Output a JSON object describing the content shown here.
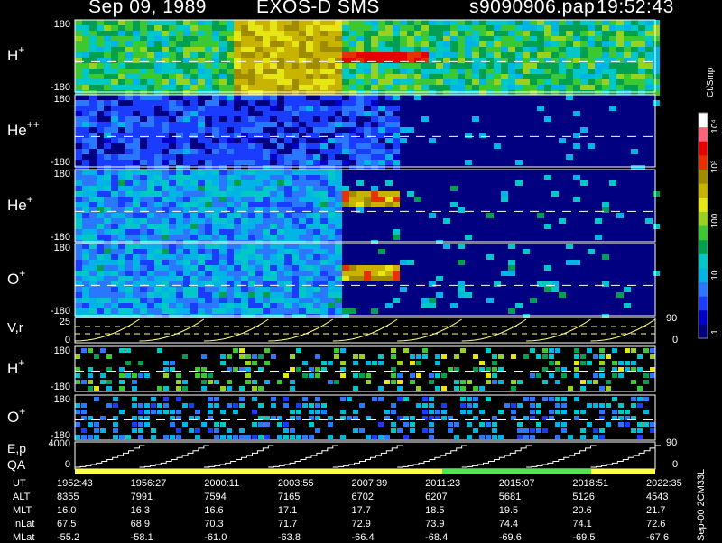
{
  "header": {
    "date": "Sep 09, 1989",
    "instrument": "EXOS-D SMS",
    "file": "s9090906.pap",
    "time": "19:52:43"
  },
  "panels": [
    {
      "id": "hplus",
      "label": "H",
      "sup": "+",
      "top": "180",
      "bottom": "-180",
      "hue": "hot"
    },
    {
      "id": "heplusplus",
      "label": "He",
      "sup": "++",
      "top": "180",
      "bottom": "-180",
      "hue": "cold"
    },
    {
      "id": "heplus",
      "label": "He",
      "sup": "+",
      "top": "180",
      "bottom": "-180",
      "hue": "mid"
    },
    {
      "id": "oplus",
      "label": "O",
      "sup": "+",
      "top": "180",
      "bottom": "-180",
      "hue": "mid"
    }
  ],
  "vr_panel": {
    "label": "V,r",
    "left_top": "25",
    "left_bottom": "0",
    "right_top": "90",
    "right_bottom": "0"
  },
  "small_panels": [
    {
      "id": "hplus2",
      "label": "H",
      "sup": "+",
      "top": "180",
      "bottom": "-180"
    },
    {
      "id": "oplus2",
      "label": "O",
      "sup": "+",
      "top": "180",
      "bottom": "-180"
    }
  ],
  "ep_panel": {
    "label1": "E,p",
    "label2": "QA",
    "left_top": "4000",
    "left_bottom": "0",
    "right_top": "90",
    "right_bottom": "0"
  },
  "colorbar": {
    "unit": "Ct/Smp",
    "ticks": [
      "1",
      "10",
      "100",
      "10³",
      "10⁴"
    ],
    "colors": [
      "#000080",
      "#0000c8",
      "#1a3cff",
      "#2a78ff",
      "#00b4e6",
      "#00c8c8",
      "#00a050",
      "#3cc832",
      "#96d21e",
      "#e6e614",
      "#c8b400",
      "#a08c00",
      "#e63200",
      "#e60000",
      "#ff6478",
      "#ffffff"
    ]
  },
  "time_table": {
    "row_labels": [
      "UT",
      "ALT",
      "MLT",
      "InLat",
      "MLat"
    ],
    "columns": [
      {
        "UT": "1952:43",
        "ALT": "8355",
        "MLT": "16.0",
        "InLat": "67.5",
        "MLat": "-55.2"
      },
      {
        "UT": "1956:27",
        "ALT": "7991",
        "MLT": "16.3",
        "InLat": "68.9",
        "MLat": "-58.1"
      },
      {
        "UT": "2000:11",
        "ALT": "7594",
        "MLT": "16.6",
        "InLat": "70.3",
        "MLat": "-61.0"
      },
      {
        "UT": "2003:55",
        "ALT": "7165",
        "MLT": "17.1",
        "InLat": "71.7",
        "MLat": "-63.8"
      },
      {
        "UT": "2007:39",
        "ALT": "6702",
        "MLT": "17.7",
        "InLat": "72.9",
        "MLat": "-66.4"
      },
      {
        "UT": "2011:23",
        "ALT": "6207",
        "MLT": "18.5",
        "InLat": "73.9",
        "MLat": "-68.4"
      },
      {
        "UT": "2015:07",
        "ALT": "5681",
        "MLT": "19.5",
        "InLat": "74.4",
        "MLat": "-69.6"
      },
      {
        "UT": "2018:51",
        "ALT": "5126",
        "MLT": "20.6",
        "InLat": "74.1",
        "MLat": "-69.5"
      },
      {
        "UT": "2022:35",
        "ALT": "4543",
        "MLT": "21.7",
        "InLat": "72.6",
        "MLat": "-67.6"
      }
    ]
  },
  "footer_code": "Sep-00 2CM33L",
  "chart_data": {
    "type": "heatmap",
    "title": "Sep 09, 1989   EXOS-D SMS",
    "x_ticks": [
      "1952:43",
      "1956:27",
      "2000:11",
      "2003:55",
      "2007:39",
      "2011:23",
      "2015:07",
      "2018:51",
      "2022:35"
    ],
    "ylim": [
      -180,
      180
    ],
    "series": [
      {
        "name": "H+"
      },
      {
        "name": "He++"
      },
      {
        "name": "He+"
      },
      {
        "name": "O+"
      }
    ],
    "colorscale": "log",
    "colorbar_range": [
      1,
      10000
    ]
  }
}
